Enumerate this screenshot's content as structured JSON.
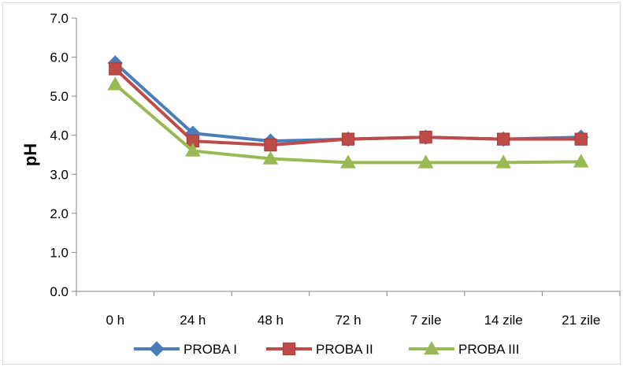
{
  "chart_data": {
    "type": "line",
    "title": "",
    "xlabel": "",
    "ylabel": "pH",
    "ylim": [
      0,
      7
    ],
    "ytick_step": 1,
    "ytick_labels": [
      "0.0",
      "1.0",
      "2.0",
      "3.0",
      "4.0",
      "5.0",
      "6.0",
      "7.0"
    ],
    "grid": false,
    "legend": "bottom",
    "categories": [
      "0 h",
      "24 h",
      "48 h",
      "72 h",
      "7 zile",
      "14 zile",
      "21 zile"
    ],
    "series": [
      {
        "name": "PROBA I",
        "marker": "diamond",
        "color": "#4a7ebb",
        "values": [
          5.85,
          4.05,
          3.85,
          3.9,
          3.95,
          3.9,
          3.95
        ]
      },
      {
        "name": "PROBA II",
        "marker": "square",
        "color": "#be4b48",
        "values": [
          5.7,
          3.85,
          3.75,
          3.9,
          3.95,
          3.9,
          3.9
        ]
      },
      {
        "name": "PROBA III",
        "marker": "triangle",
        "color": "#98b954",
        "values": [
          5.3,
          3.6,
          3.4,
          3.3,
          3.3,
          3.3,
          3.32
        ]
      }
    ]
  }
}
